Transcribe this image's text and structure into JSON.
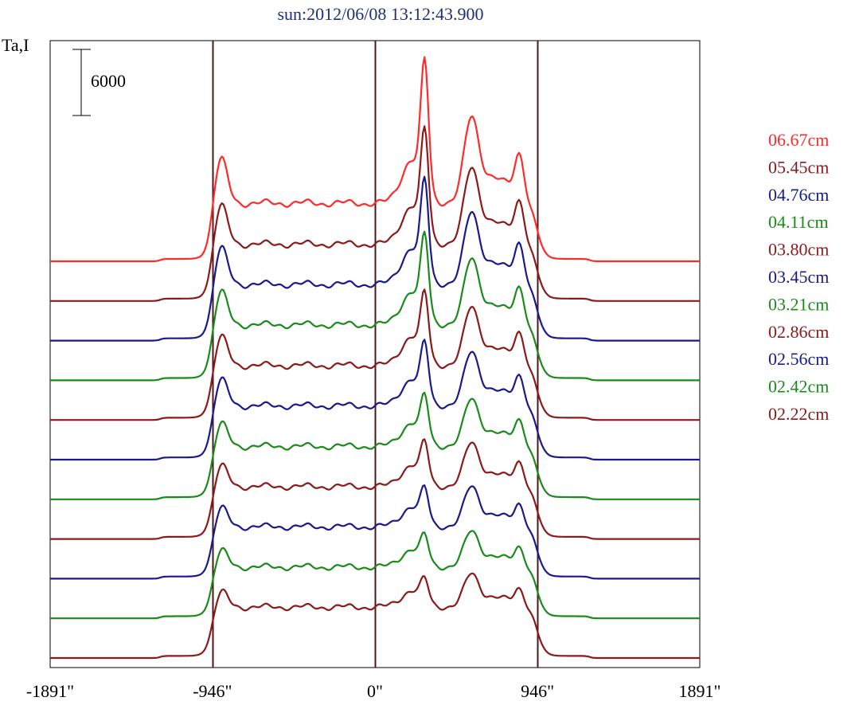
{
  "chart_data": {
    "type": "line",
    "title": "sun:2012/06/08 13:12:43.900",
    "ylabel": "Ta,I",
    "xlabel": "",
    "xlim": [
      -1891,
      1891
    ],
    "x_ticks": [
      {
        "value": -1891,
        "label": "-1891\""
      },
      {
        "value": -946,
        "label": "-946\""
      },
      {
        "value": 0,
        "label": "0\""
      },
      {
        "value": 946,
        "label": "946\""
      },
      {
        "value": 1891,
        "label": "1891\""
      }
    ],
    "vertical_lines": [
      -946,
      0,
      946
    ],
    "scale_bar": {
      "label": "6000",
      "value": 6000
    },
    "grid": false,
    "legend_position": "right",
    "colors": {
      "title": "#1f2f7a",
      "frame": "#000000",
      "vline": "#4a1a1a",
      "text": "#000000"
    },
    "series": [
      {
        "name": "06.67cm",
        "color": "#ff2a2a",
        "offset": 10,
        "stack_level": 10,
        "amplitude": 1.0
      },
      {
        "name": "05.45cm",
        "color": "#8b1a1a",
        "offset": 9,
        "stack_level": 9,
        "amplitude": 0.9
      },
      {
        "name": "04.76cm",
        "color": "#1a1a8b",
        "offset": 8,
        "stack_level": 8,
        "amplitude": 0.86
      },
      {
        "name": "04.11cm",
        "color": "#1a8b1a",
        "offset": 7,
        "stack_level": 7,
        "amplitude": 0.8
      },
      {
        "name": "03.80cm",
        "color": "#8b1a1a",
        "offset": 6,
        "stack_level": 6,
        "amplitude": 0.72
      },
      {
        "name": "03.45cm",
        "color": "#1a1a8b",
        "offset": 5,
        "stack_level": 5,
        "amplitude": 0.67
      },
      {
        "name": "03.21cm",
        "color": "#1a8b1a",
        "offset": 4,
        "stack_level": 4,
        "amplitude": 0.6
      },
      {
        "name": "02.86cm",
        "color": "#8b1a1a",
        "offset": 3,
        "stack_level": 3,
        "amplitude": 0.56
      },
      {
        "name": "02.56cm",
        "color": "#1a1a8b",
        "offset": 2,
        "stack_level": 2,
        "amplitude": 0.52
      },
      {
        "name": "02.42cm",
        "color": "#1a8b1a",
        "offset": 1,
        "stack_level": 1,
        "amplitude": 0.47
      },
      {
        "name": "02.22cm",
        "color": "#8b1a1a",
        "offset": 0,
        "stack_level": 0,
        "amplitude": 0.44
      }
    ]
  }
}
